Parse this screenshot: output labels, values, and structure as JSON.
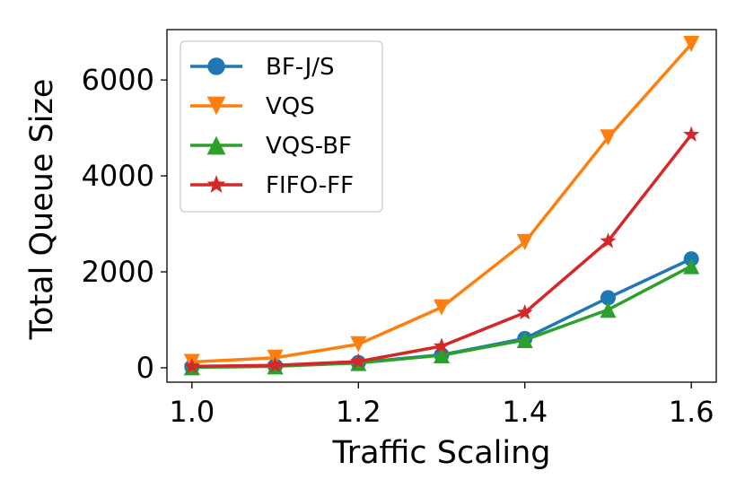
{
  "chart_data": {
    "type": "line",
    "title": "",
    "xlabel": "Traffic Scaling",
    "ylabel": "Total Queue Size",
    "x": [
      1.0,
      1.1,
      1.2,
      1.3,
      1.4,
      1.5,
      1.6
    ],
    "xlim": [
      0.97,
      1.63
    ],
    "ylim": [
      -300,
      7050
    ],
    "xticks": [
      1.0,
      1.2,
      1.4,
      1.6
    ],
    "xtick_labels": [
      "1.0",
      "1.2",
      "1.4",
      "1.6"
    ],
    "yticks": [
      0,
      2000,
      4000,
      6000
    ],
    "ytick_labels": [
      "0",
      "2000",
      "4000",
      "6000"
    ],
    "grid": false,
    "legend_position": "top-left",
    "series": [
      {
        "name": "BF-J/S",
        "color": "#1f77b4",
        "marker": "circle",
        "values": [
          20,
          40,
          110,
          270,
          610,
          1460,
          2270
        ]
      },
      {
        "name": "VQS",
        "color": "#ff7f0e",
        "marker": "triangle-down",
        "values": [
          120,
          210,
          490,
          1260,
          2620,
          4800,
          6750
        ]
      },
      {
        "name": "VQS-BF",
        "color": "#2ca02c",
        "marker": "triangle-up",
        "values": [
          10,
          30,
          100,
          260,
          580,
          1210,
          2120
        ]
      },
      {
        "name": "FIFO-FF",
        "color": "#d62728",
        "marker": "star",
        "values": [
          30,
          50,
          130,
          450,
          1150,
          2640,
          4860
        ]
      }
    ]
  }
}
